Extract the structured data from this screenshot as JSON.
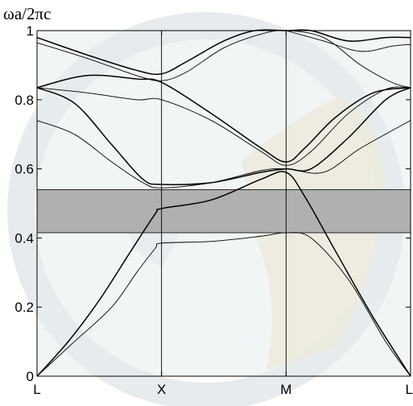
{
  "chart_data": {
    "type": "line",
    "ylabel": "ωa/2πc",
    "xlabel": "",
    "x_ticks": [
      {
        "label": "L",
        "x": 0
      },
      {
        "label": "X",
        "x": 1
      },
      {
        "label": "M",
        "x": 2
      },
      {
        "label": "L",
        "x": 3
      }
    ],
    "y_ticks": [
      {
        "label": "0",
        "y": 0
      },
      {
        "label": "0.2",
        "y": 0.2
      },
      {
        "label": "0.4",
        "y": 0.4
      },
      {
        "label": "0.6",
        "y": 0.6
      },
      {
        "label": "0.8",
        "y": 0.8
      },
      {
        "label": "1",
        "y": 1
      }
    ],
    "xlim": [
      0,
      3
    ],
    "ylim": [
      0,
      1
    ],
    "band_gap": {
      "ymin": 0.415,
      "ymax": 0.54,
      "color": "#b0b0b0"
    },
    "colors": {
      "line": "#000000",
      "plot_background": "#e6ecef",
      "vlines": "#000000"
    },
    "series": [
      {
        "values": [
          [
            0,
            0
          ],
          [
            0.3,
            0.1
          ],
          [
            0.6,
            0.2
          ],
          [
            0.8,
            0.3
          ],
          [
            0.95,
            0.37
          ],
          [
            1,
            0.385
          ],
          [
            1.4,
            0.39
          ],
          [
            1.8,
            0.405
          ],
          [
            2,
            0.415
          ],
          [
            2.2,
            0.4
          ],
          [
            2.5,
            0.28
          ],
          [
            2.8,
            0.1
          ],
          [
            3,
            0
          ]
        ]
      },
      {
        "values": [
          [
            0,
            0
          ],
          [
            0.25,
            0.1
          ],
          [
            0.5,
            0.22
          ],
          [
            0.75,
            0.36
          ],
          [
            0.95,
            0.47
          ],
          [
            1,
            0.485
          ],
          [
            1.4,
            0.51
          ],
          [
            1.8,
            0.57
          ],
          [
            2,
            0.59
          ],
          [
            2.15,
            0.52
          ],
          [
            2.4,
            0.36
          ],
          [
            2.7,
            0.17
          ],
          [
            3,
            0
          ]
        ]
      },
      {
        "values": [
          [
            0,
            0.74
          ],
          [
            0.3,
            0.7
          ],
          [
            0.6,
            0.62
          ],
          [
            0.85,
            0.56
          ],
          [
            1,
            0.545
          ],
          [
            1.4,
            0.56
          ],
          [
            1.8,
            0.595
          ],
          [
            2,
            0.6
          ],
          [
            2.3,
            0.59
          ],
          [
            2.6,
            0.66
          ],
          [
            3,
            0.74
          ]
        ]
      },
      {
        "values": [
          [
            0,
            0.835
          ],
          [
            0.3,
            0.79
          ],
          [
            0.6,
            0.67
          ],
          [
            0.85,
            0.57
          ],
          [
            1,
            0.555
          ],
          [
            1.4,
            0.56
          ],
          [
            1.8,
            0.59
          ],
          [
            2,
            0.6
          ],
          [
            2.2,
            0.6
          ],
          [
            2.5,
            0.69
          ],
          [
            2.8,
            0.8
          ],
          [
            3,
            0.835
          ]
        ]
      },
      {
        "values": [
          [
            0,
            0.835
          ],
          [
            0.4,
            0.82
          ],
          [
            0.8,
            0.8
          ],
          [
            1,
            0.8
          ],
          [
            1.4,
            0.74
          ],
          [
            1.8,
            0.65
          ],
          [
            2,
            0.61
          ],
          [
            2.2,
            0.65
          ],
          [
            2.5,
            0.76
          ],
          [
            2.8,
            0.83
          ],
          [
            3,
            0.835
          ]
        ]
      },
      {
        "values": [
          [
            0,
            0.835
          ],
          [
            0.4,
            0.87
          ],
          [
            0.8,
            0.86
          ],
          [
            1,
            0.85
          ],
          [
            1.4,
            0.76
          ],
          [
            1.8,
            0.66
          ],
          [
            2,
            0.62
          ],
          [
            2.15,
            0.66
          ],
          [
            2.4,
            0.75
          ],
          [
            2.7,
            0.82
          ],
          [
            3,
            0.835
          ]
        ]
      },
      {
        "values": [
          [
            0,
            0.965
          ],
          [
            0.4,
            0.92
          ],
          [
            0.8,
            0.87
          ],
          [
            1,
            0.855
          ],
          [
            1.2,
            0.88
          ],
          [
            1.5,
            0.95
          ],
          [
            1.8,
            0.99
          ],
          [
            2,
            1.0
          ],
          [
            2.3,
            0.98
          ],
          [
            2.6,
            0.9
          ],
          [
            2.85,
            0.85
          ],
          [
            3,
            0.835
          ]
        ]
      },
      {
        "values": [
          [
            0,
            0.98
          ],
          [
            0.4,
            0.93
          ],
          [
            0.8,
            0.885
          ],
          [
            1,
            0.875
          ],
          [
            1.2,
            0.91
          ],
          [
            1.5,
            0.97
          ],
          [
            1.75,
            1.0
          ],
          [
            2,
            1.0
          ],
          [
            2.2,
            1.0
          ],
          [
            2.5,
            0.97
          ],
          [
            2.8,
            0.98
          ],
          [
            3,
            0.98
          ]
        ]
      },
      {
        "values": [
          [
            2,
            1.0
          ],
          [
            2.3,
            0.97
          ],
          [
            2.6,
            0.94
          ],
          [
            2.85,
            0.955
          ],
          [
            3,
            0.96
          ]
        ]
      }
    ]
  }
}
